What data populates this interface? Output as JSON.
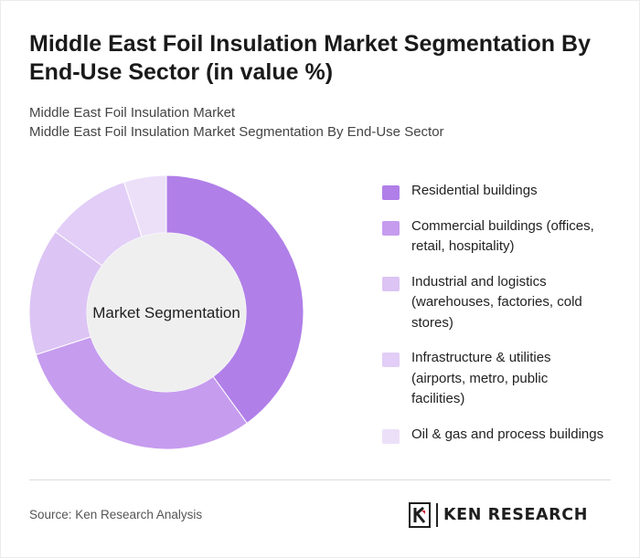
{
  "header": {
    "title": "Middle East Foil Insulation Market Segmentation By End-Use Sector (in value %)",
    "subtitle_line1": "Middle East Foil Insulation Market",
    "subtitle_line2": "Middle East Foil Insulation Market Segmentation By End-Use Sector"
  },
  "chart_data": {
    "type": "pie",
    "variant": "donut",
    "center_label": "Market Segmentation",
    "categories": [
      "Residential buildings",
      "Commercial buildings (offices, retail, hospitality)",
      "Industrial and logistics (warehouses, factories, cold stores)",
      "Infrastructure & utilities (airports, metro, public facilities)",
      "Oil & gas and process buildings"
    ],
    "values": [
      40,
      30,
      15,
      10,
      5
    ],
    "colors": [
      "#b07fe8",
      "#c69cef",
      "#dcc4f4",
      "#e2cef6",
      "#ece0f9"
    ],
    "legend_position": "right"
  },
  "footer": {
    "source": "Source: Ken Research Analysis",
    "logo_text": "KEN RESEARCH",
    "logo_icon": "ken-research-logo-icon"
  }
}
